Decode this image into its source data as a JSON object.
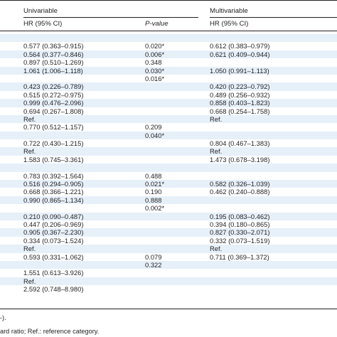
{
  "header": {
    "uni_title": "Univariable",
    "multi_title": "Multivariable",
    "uni_hr_label": "HR (95% CI)",
    "pvalue_label": "P-value",
    "multi_hr_label": "HR (95% CI)"
  },
  "rows": [
    {
      "uni": "",
      "p": "",
      "multi": ""
    },
    {
      "uni": "0.577 (0.363–0.915)",
      "p": "0.020*",
      "multi": "0.612 (0.383–0.979)"
    },
    {
      "uni": "0.564 (0.377–0.846)",
      "p": "0.006*",
      "multi": "0.621 (0.409–0.944)"
    },
    {
      "uni": "0.897 (0.510–1.269)",
      "p": "0.348",
      "multi": ""
    },
    {
      "uni": "1.061 (1.006–1.118)",
      "p": "0.030*",
      "multi": "1.050 (0.991–1.113)"
    },
    {
      "uni": "",
      "p": "0.016*",
      "multi": ""
    },
    {
      "uni": "0.423 (0.226–0.789)",
      "p": "",
      "multi": "0.420 (0.223–0.792)"
    },
    {
      "uni": "0.515 (0.272–0.975)",
      "p": "",
      "multi": "0.489 (0.256–0.932)"
    },
    {
      "uni": "0.999 (0.476–2.096)",
      "p": "",
      "multi": "0.858 (0.403–1.823)"
    },
    {
      "uni": "0.694 (0.267–1.808)",
      "p": "",
      "multi": "0.668 (0.254–1.758)"
    },
    {
      "uni": "Ref.",
      "p": "",
      "multi": "Ref."
    },
    {
      "uni": "0.770 (0.512–1.157)",
      "p": "0.209",
      "multi": ""
    },
    {
      "uni": "",
      "p": "0.040*",
      "multi": ""
    },
    {
      "uni": "0.722 (0.430–1.215)",
      "p": "",
      "multi": "0.804 (0.467–1.383)"
    },
    {
      "uni": "Ref.",
      "p": "",
      "multi": "Ref."
    },
    {
      "uni": "1.583 (0.745–3.361)",
      "p": "",
      "multi": "1.473 (0.678–3.198)"
    },
    {
      "uni": "",
      "p": "",
      "multi": ""
    },
    {
      "uni": "0.783 (0.392–1.564)",
      "p": "0.488",
      "multi": ""
    },
    {
      "uni": "0.516 (0.294–0.905)",
      "p": "0.021*",
      "multi": "0.582 (0.326–1.039)"
    },
    {
      "uni": "0.668 (0.366–1.221)",
      "p": "0.190",
      "multi": "0.462 (0.240–0.888)"
    },
    {
      "uni": "0.990 (0.865–1.134)",
      "p": "0.888",
      "multi": ""
    },
    {
      "uni": "",
      "p": "0.002*",
      "multi": ""
    },
    {
      "uni": "0.210 (0.090–0.487)",
      "p": "",
      "multi": "0.195 (0.083–0.462)"
    },
    {
      "uni": "0.447 (0.206–0.969)",
      "p": "",
      "multi": "0.394 (0.180–0.865)"
    },
    {
      "uni": "0.905 (0.367–2.230)",
      "p": "",
      "multi": "0.827 (0.330–2.071)"
    },
    {
      "uni": "0.334 (0.073–1.524)",
      "p": "",
      "multi": "0.332 (0.073–1.519)"
    },
    {
      "uni": "Ref.",
      "p": "",
      "multi": "Ref."
    },
    {
      "uni": "0.593 (0.331–1.062)",
      "p": "0.079",
      "multi": "0.711 (0.369–1.372)"
    },
    {
      "uni": "",
      "p": "0.322",
      "multi": ""
    },
    {
      "uni": "1.551 (0.613–3.926)",
      "p": "",
      "multi": ""
    },
    {
      "uni": "Ref.",
      "p": "",
      "multi": ""
    },
    {
      "uni": "2.592 (0.748–8.980)",
      "p": "",
      "multi": ""
    }
  ],
  "footnotes": [
    "-).",
    "ard ratio; Ref.: reference category."
  ]
}
